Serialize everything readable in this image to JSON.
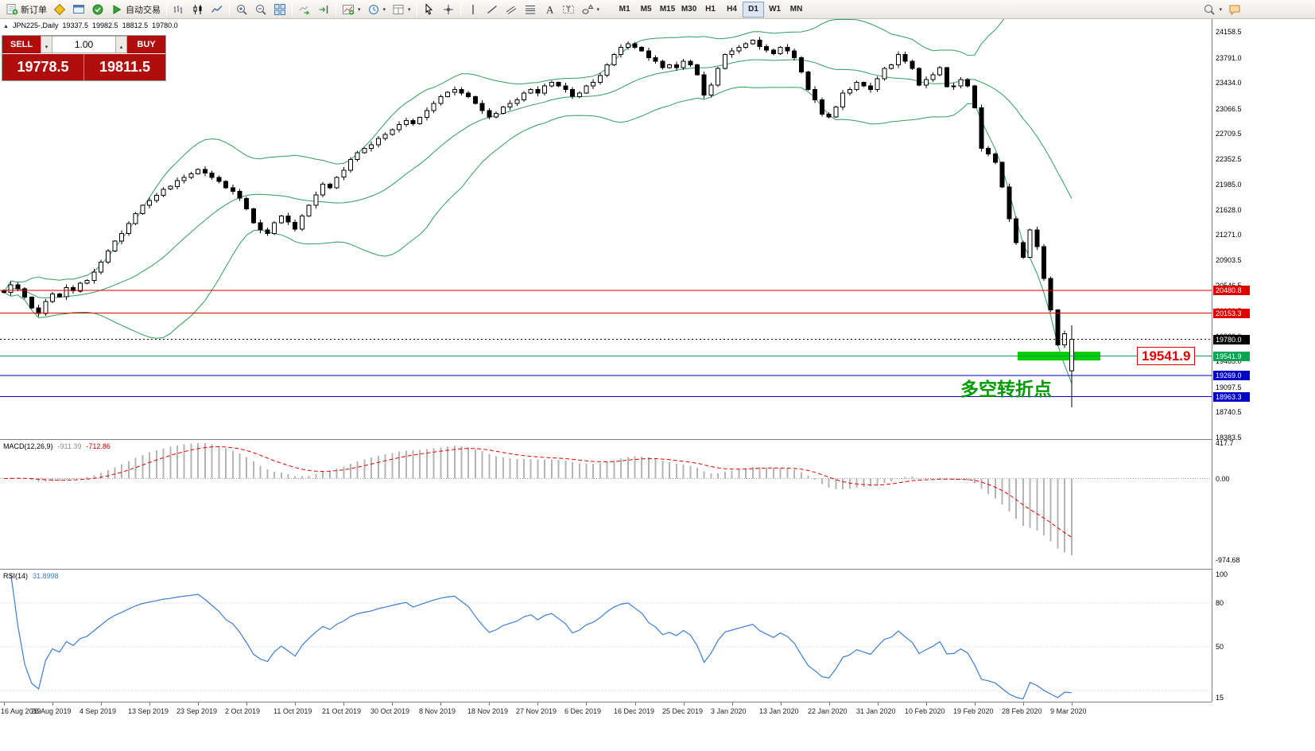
{
  "toolbar": {
    "new_order": "新订单",
    "autotrading": "自动交易",
    "timeframes": [
      "M1",
      "M5",
      "M15",
      "M30",
      "H1",
      "H4",
      "D1",
      "W1",
      "MN"
    ],
    "active_timeframe": "D1"
  },
  "symbol_bar": {
    "symbol": "JPN225-,Daily",
    "open": "19337.5",
    "high": "19982.5",
    "low": "18812.5",
    "close": "19780.0"
  },
  "trade_panel": {
    "sell": "SELL",
    "buy": "BUY",
    "volume": "1.00",
    "sell_price": "19778.5",
    "buy_price": "19811.5"
  },
  "chart_data": {
    "type": "candlestick",
    "title": "JPN225-,Daily",
    "x_labels": [
      "16 Aug 2019",
      "26 Aug 2019",
      "4 Sep 2019",
      "13 Sep 2019",
      "23 Sep 2019",
      "2 Oct 2019",
      "11 Oct 2019",
      "21 Oct 2019",
      "30 Oct 2019",
      "8 Nov 2019",
      "18 Nov 2019",
      "27 Nov 2019",
      "6 Dec 2019",
      "16 Dec 2019",
      "25 Dec 2019",
      "3 Jan 2020",
      "13 Jan 2020",
      "22 Jan 2020",
      "31 Jan 2020",
      "10 Feb 2020",
      "19 Feb 2020",
      "28 Feb 2020",
      "9 Mar 2020"
    ],
    "closes": [
      20450,
      20560,
      20500,
      20380,
      20230,
      20150,
      20320,
      20430,
      20390,
      20520,
      20470,
      20580,
      20620,
      20740,
      20880,
      21040,
      21180,
      21290,
      21430,
      21570,
      21690,
      21760,
      21830,
      21920,
      21960,
      22040,
      22090,
      22140,
      22200,
      22150,
      22090,
      22030,
      21940,
      21890,
      21790,
      21640,
      21440,
      21340,
      21290,
      21440,
      21540,
      21450,
      21350,
      21540,
      21690,
      21840,
      21990,
      21940,
      22090,
      22190,
      22340,
      22440,
      22500,
      22550,
      22640,
      22700,
      22770,
      22840,
      22900,
      22850,
      22940,
      23040,
      23140,
      23240,
      23300,
      23340,
      23290,
      23240,
      23140,
      23040,
      22950,
      23000,
      23090,
      23140,
      23190,
      23290,
      23340,
      23290,
      23390,
      23440,
      23390,
      23340,
      23240,
      23290,
      23390,
      23440,
      23540,
      23690,
      23840,
      23940,
      23990,
      23940,
      23890,
      23790,
      23740,
      23650,
      23690,
      23650,
      23740,
      23690,
      23550,
      23260,
      23400,
      23640,
      23840,
      23890,
      23940,
      23990,
      24040,
      23950,
      23900,
      23850,
      23940,
      23890,
      23790,
      23590,
      23340,
      23190,
      22990,
      22950,
      23090,
      23290,
      23340,
      23440,
      23390,
      23340,
      23490,
      23640,
      23690,
      23840,
      23740,
      23640,
      23400,
      23480,
      23550,
      23650,
      23380,
      23390,
      23480,
      23390,
      23080,
      22500,
      22420,
      22300,
      21950,
      21500,
      21160,
      20950,
      21340,
      21100,
      20650,
      20200,
      19700,
      19860,
      19780
    ],
    "last_candle": {
      "open": 19337.5,
      "high": 19982.5,
      "low": 18812.5,
      "close": 19780.0
    },
    "y_ticks": [
      "24158.5",
      "23791.0",
      "23434.0",
      "23066.5",
      "22709.5",
      "22352.5",
      "21985.0",
      "21628.0",
      "21271.0",
      "20903.5",
      "20546.5",
      "20189.5",
      "19822.0",
      "19465.0",
      "19097.5",
      "18740.5",
      "18383.5"
    ],
    "y_range": [
      18360,
      24342
    ],
    "price_lines": [
      {
        "price": 20480.8,
        "label": "20480.8",
        "color": "#e00000",
        "style": "solid"
      },
      {
        "price": 20153.3,
        "label": "20153.3",
        "color": "#e00000",
        "style": "solid"
      },
      {
        "price": 19780.0,
        "label": "19780.0",
        "color": "#000000",
        "style": "dotted"
      },
      {
        "price": 19541.9,
        "label": "19541.9",
        "color": "#00a551",
        "style": "solid"
      },
      {
        "price": 19269.0,
        "label": "19269.0",
        "color": "#0000c8",
        "style": "solid"
      },
      {
        "price": 18963.3,
        "label": "18963.3",
        "color": "#0000c8",
        "style": "solid"
      }
    ],
    "bollinger": {
      "period": 20,
      "deviation": 2,
      "color": "#2e9e5b"
    },
    "highlight": {
      "x": 1280,
      "width": 104,
      "price_top": 19605,
      "price_bottom": 19480,
      "color": "#00cc00"
    },
    "annotations": {
      "price_callout": "19541.9",
      "note": "多空转折点"
    },
    "macd": {
      "name": "MACD(12,26,9)",
      "value": "-911.39",
      "signal_value": "-712.86",
      "y_ticks": [
        "417.7",
        "0.00",
        "-974.68"
      ],
      "range": [
        -1075,
        460
      ],
      "histogram_color": "#b4b4b4",
      "signal_color": "#e00000"
    },
    "rsi": {
      "name": "RSI(14)",
      "value": "31.8998",
      "y_ticks": [
        100,
        80,
        50,
        15
      ],
      "range": [
        13,
        103
      ],
      "levels": [
        80,
        50,
        20
      ],
      "color": "#3b7dd8"
    }
  }
}
